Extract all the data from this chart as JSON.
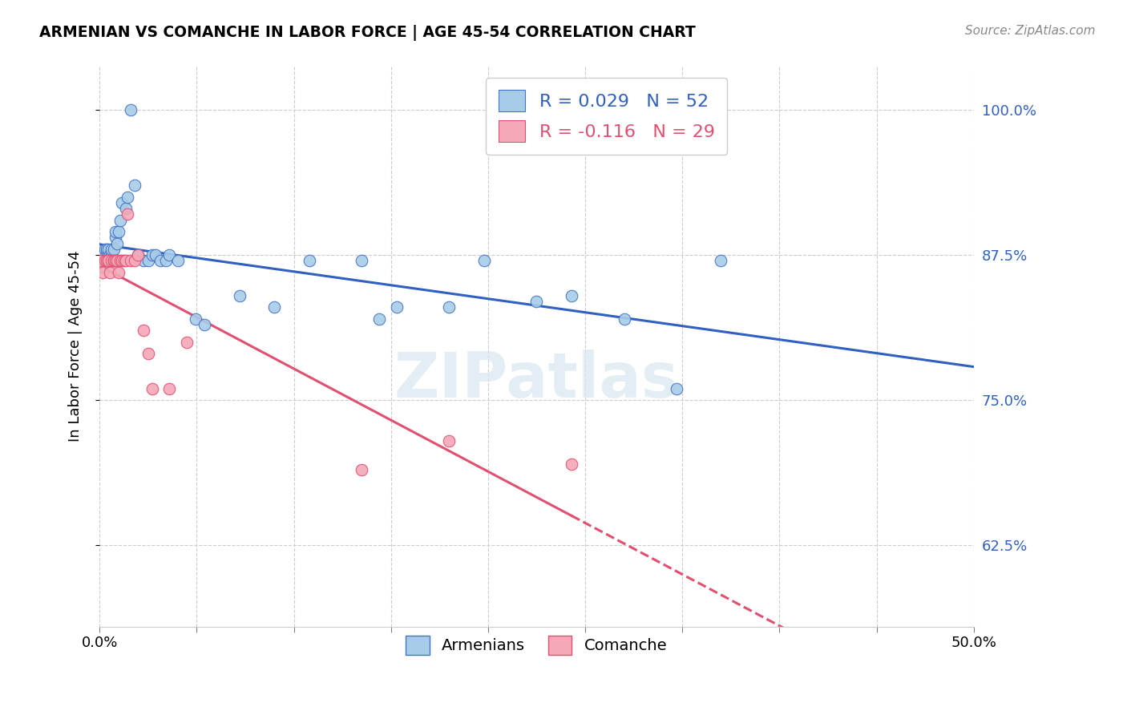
{
  "title": "ARMENIAN VS COMANCHE IN LABOR FORCE | AGE 45-54 CORRELATION CHART",
  "source": "Source: ZipAtlas.com",
  "ylabel": "In Labor Force | Age 45-54",
  "yticks": [
    0.625,
    0.75,
    0.875,
    1.0
  ],
  "ytick_labels": [
    "62.5%",
    "75.0%",
    "87.5%",
    "100.0%"
  ],
  "xmin": 0.0,
  "xmax": 0.5,
  "ymin": 0.555,
  "ymax": 1.038,
  "watermark": "ZIPatlas",
  "legend_r_armenian": "R = 0.029",
  "legend_n_armenian": "N = 52",
  "legend_r_comanche": "R = -0.116",
  "legend_n_comanche": "N = 29",
  "armenian_color": "#a8cce8",
  "armenian_edge": "#4472c4",
  "comanche_color": "#f4a8b8",
  "comanche_edge": "#e05070",
  "trendline_armenian_color": "#3060c0",
  "trendline_comanche_color": "#e05070",
  "armenian_x": [
    0.001,
    0.002,
    0.002,
    0.003,
    0.003,
    0.004,
    0.004,
    0.005,
    0.005,
    0.005,
    0.006,
    0.006,
    0.007,
    0.007,
    0.007,
    0.008,
    0.008,
    0.009,
    0.009,
    0.01,
    0.01,
    0.011,
    0.012,
    0.013,
    0.015,
    0.016,
    0.018,
    0.02,
    0.022,
    0.025,
    0.028,
    0.03,
    0.032,
    0.035,
    0.038,
    0.04,
    0.045,
    0.055,
    0.06,
    0.08,
    0.1,
    0.12,
    0.15,
    0.16,
    0.17,
    0.2,
    0.22,
    0.25,
    0.27,
    0.3,
    0.33,
    0.355
  ],
  "armenian_y": [
    0.875,
    0.875,
    0.865,
    0.87,
    0.88,
    0.875,
    0.88,
    0.87,
    0.875,
    0.88,
    0.87,
    0.875,
    0.87,
    0.875,
    0.88,
    0.87,
    0.88,
    0.89,
    0.895,
    0.885,
    0.87,
    0.895,
    0.905,
    0.92,
    0.915,
    0.925,
    1.0,
    0.935,
    0.875,
    0.87,
    0.87,
    0.875,
    0.875,
    0.87,
    0.87,
    0.875,
    0.87,
    0.82,
    0.815,
    0.84,
    0.83,
    0.87,
    0.87,
    0.82,
    0.83,
    0.83,
    0.87,
    0.835,
    0.84,
    0.82,
    0.76,
    0.87
  ],
  "comanche_x": [
    0.001,
    0.002,
    0.003,
    0.004,
    0.005,
    0.005,
    0.006,
    0.007,
    0.008,
    0.008,
    0.009,
    0.01,
    0.011,
    0.012,
    0.013,
    0.014,
    0.015,
    0.016,
    0.018,
    0.02,
    0.022,
    0.025,
    0.028,
    0.03,
    0.04,
    0.05,
    0.15,
    0.2,
    0.27
  ],
  "comanche_y": [
    0.87,
    0.86,
    0.87,
    0.87,
    0.87,
    0.87,
    0.86,
    0.87,
    0.87,
    0.87,
    0.87,
    0.87,
    0.86,
    0.87,
    0.87,
    0.87,
    0.87,
    0.91,
    0.87,
    0.87,
    0.875,
    0.81,
    0.79,
    0.76,
    0.76,
    0.8,
    0.69,
    0.715,
    0.695
  ]
}
